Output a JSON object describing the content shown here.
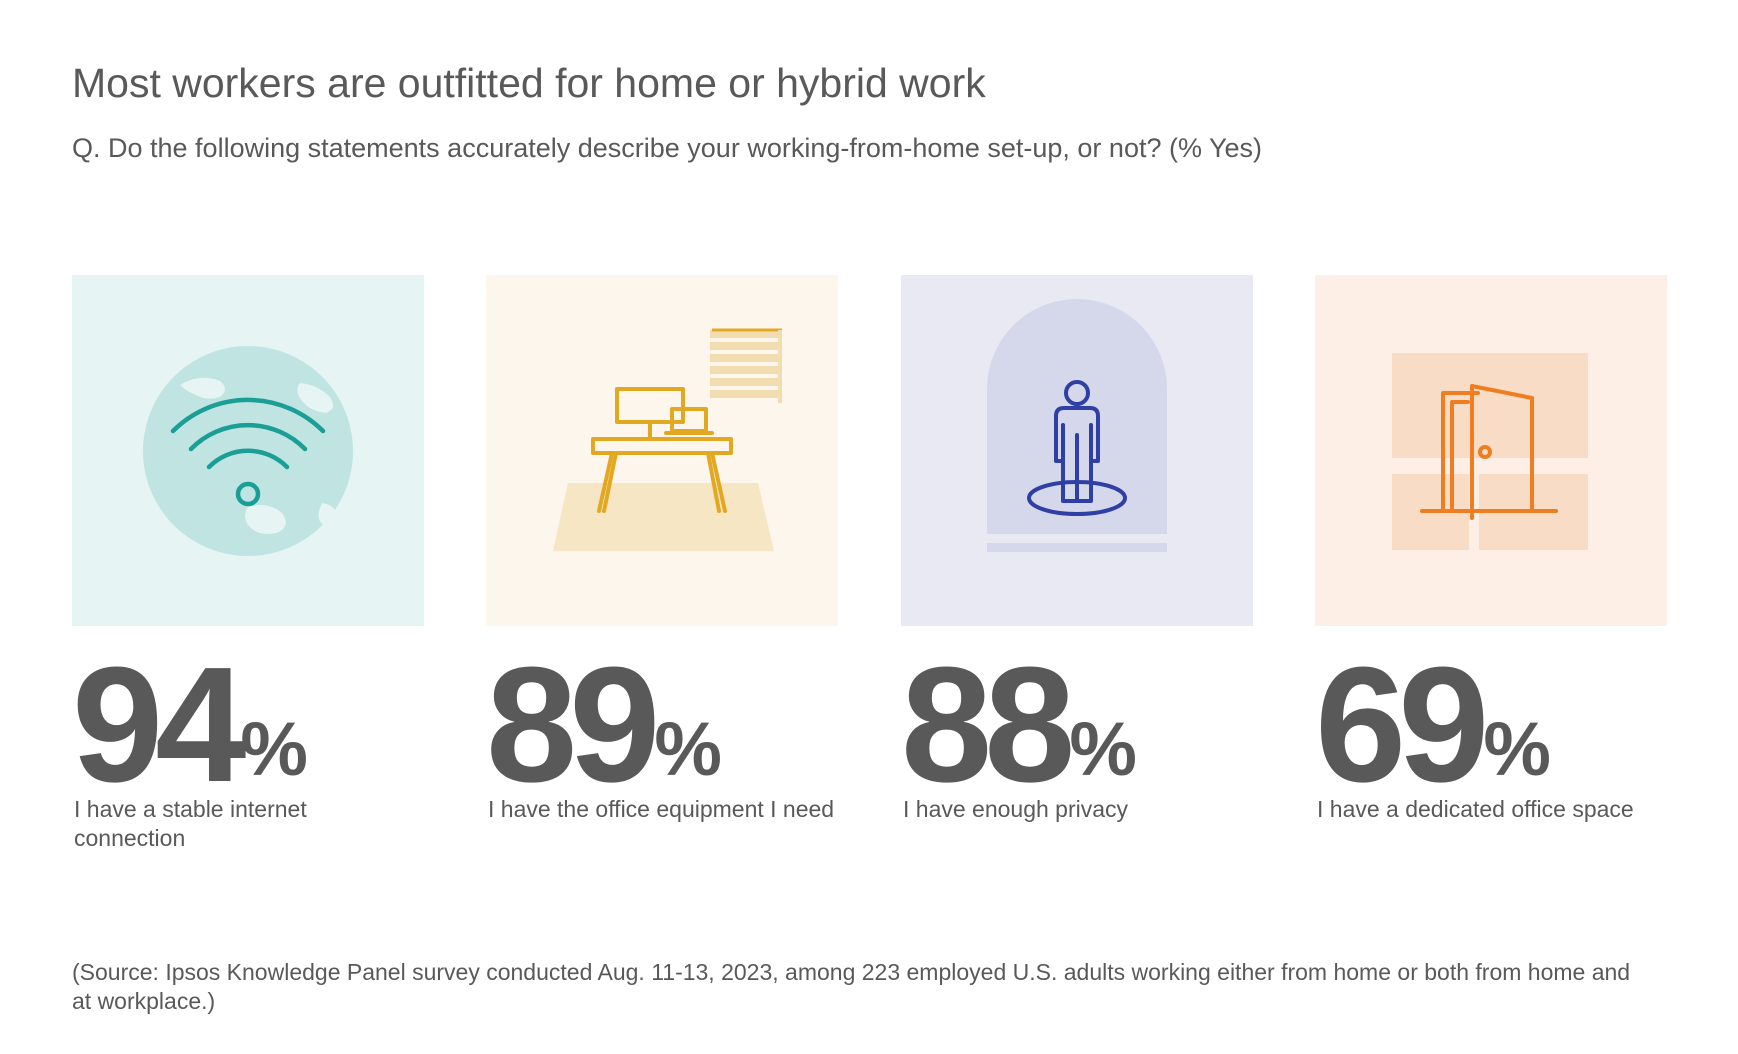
{
  "title": "Most workers are outfitted for home or hybrid work",
  "subtitle": "Q. Do the following statements accurately describe your working-from-home set-up, or not? (% Yes)",
  "percent_sign": "%",
  "cards": [
    {
      "value": "94",
      "label": "I have a stable internet connection",
      "icon": "wifi-globe-icon",
      "bg": "#e6f4f3",
      "accent": "#1a9e95"
    },
    {
      "value": "89",
      "label": "I have the office equipment I need",
      "icon": "desk-computer-icon",
      "bg": "#fdf6ec",
      "accent": "#e3a822"
    },
    {
      "value": "88",
      "label": "I have enough privacy",
      "icon": "person-privacy-icon",
      "bg": "#e8e9f3",
      "accent": "#2f3fa3"
    },
    {
      "value": "69",
      "label": "I have a dedicated office space",
      "icon": "open-door-icon",
      "bg": "#fdefe6",
      "accent": "#ef7d22"
    }
  ],
  "chart_data": {
    "type": "bar",
    "title": "Most workers are outfitted for home or hybrid work",
    "subtitle": "Q. Do the following statements accurately describe your working-from-home set-up, or not? (% Yes)",
    "categories": [
      "I have a stable internet connection",
      "I have the office equipment I need",
      "I have enough privacy",
      "I have a dedicated office space"
    ],
    "values": [
      94,
      89,
      88,
      69
    ],
    "ylim": [
      0,
      100
    ]
  },
  "source": "(Source: Ipsos Knowledge Panel survey conducted Aug. 11-13, 2023, among 223 employed U.S. adults working either from home or both from home and at workplace.)"
}
